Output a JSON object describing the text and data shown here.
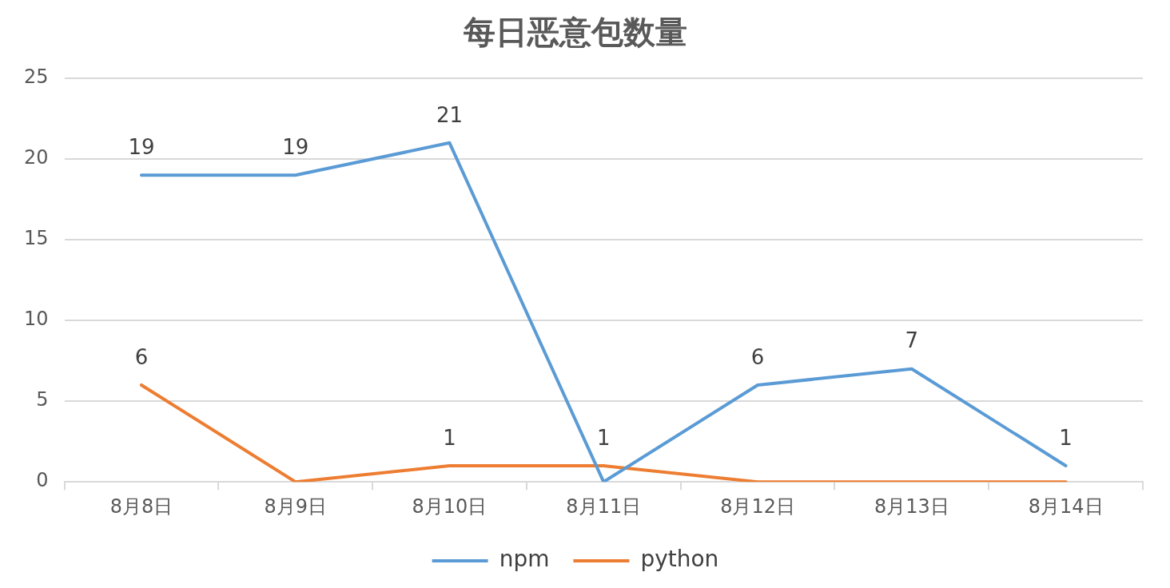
{
  "chart_data": {
    "type": "line",
    "title": "每日恶意包数量",
    "categories": [
      "8月8日",
      "8月9日",
      "8月10日",
      "8月11日",
      "8月12日",
      "8月13日",
      "8月14日"
    ],
    "series": [
      {
        "name": "npm",
        "color": "#5b9bd5",
        "values": [
          19,
          19,
          21,
          0,
          6,
          7,
          1
        ],
        "value_labels": [
          "19",
          "19",
          "21",
          null,
          "6",
          "7",
          "1"
        ]
      },
      {
        "name": "python",
        "color": "#ed7d31",
        "values": [
          6,
          0,
          1,
          1,
          0,
          0,
          0
        ],
        "value_labels": [
          "6",
          null,
          "1",
          "1",
          null,
          null,
          null
        ]
      }
    ],
    "ylim": [
      0,
      25
    ],
    "yticks": [
      0,
      5,
      10,
      15,
      20,
      25
    ],
    "grid": "y",
    "legend": "bottom",
    "marker": "none",
    "line_style": "solid"
  }
}
